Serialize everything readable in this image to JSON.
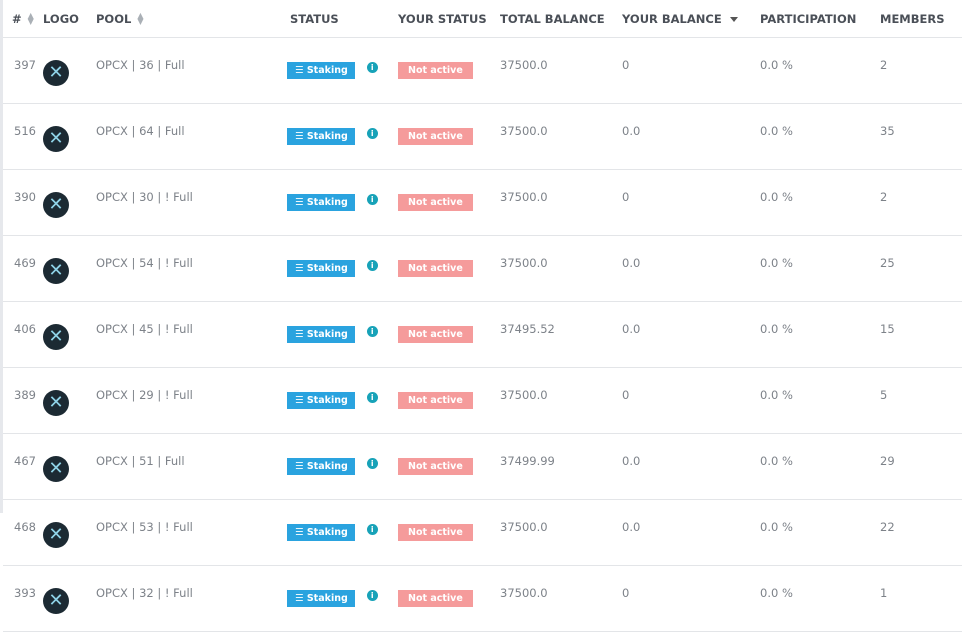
{
  "headers": {
    "num": "#",
    "logo": "LOGO",
    "pool": "POOL",
    "status": "STATUS",
    "your_status": "YOUR STATUS",
    "total_balance": "TOTAL BALANCE",
    "your_balance": "YOUR BALANCE",
    "participation": "PARTICIPATION",
    "members": "MEMBERS"
  },
  "colors": {
    "staking": "#2aa3df",
    "not_active": "#f59b9b",
    "info": "#17a2b8"
  },
  "rows": [
    {
      "num": "397",
      "pool": "OPCX | 36 | Full",
      "status": "Staking",
      "your_status": "Not active",
      "total": "37500.0",
      "yours": "0",
      "part": "0.0 %",
      "members": "2"
    },
    {
      "num": "516",
      "pool": "OPCX | 64 | Full",
      "status": "Staking",
      "your_status": "Not active",
      "total": "37500.0",
      "yours": "0.0",
      "part": "0.0 %",
      "members": "35"
    },
    {
      "num": "390",
      "pool": "OPCX | 30 | ! Full",
      "status": "Staking",
      "your_status": "Not active",
      "total": "37500.0",
      "yours": "0",
      "part": "0.0 %",
      "members": "2"
    },
    {
      "num": "469",
      "pool": "OPCX | 54 | ! Full",
      "status": "Staking",
      "your_status": "Not active",
      "total": "37500.0",
      "yours": "0.0",
      "part": "0.0 %",
      "members": "25"
    },
    {
      "num": "406",
      "pool": "OPCX | 45 | ! Full",
      "status": "Staking",
      "your_status": "Not active",
      "total": "37495.52",
      "yours": "0.0",
      "part": "0.0 %",
      "members": "15"
    },
    {
      "num": "389",
      "pool": "OPCX | 29 | ! Full",
      "status": "Staking",
      "your_status": "Not active",
      "total": "37500.0",
      "yours": "0",
      "part": "0.0 %",
      "members": "5"
    },
    {
      "num": "467",
      "pool": "OPCX | 51 | Full",
      "status": "Staking",
      "your_status": "Not active",
      "total": "37499.99",
      "yours": "0.0",
      "part": "0.0 %",
      "members": "29"
    },
    {
      "num": "468",
      "pool": "OPCX | 53 | ! Full",
      "status": "Staking",
      "your_status": "Not active",
      "total": "37500.0",
      "yours": "0.0",
      "part": "0.0 %",
      "members": "22"
    },
    {
      "num": "393",
      "pool": "OPCX | 32 | ! Full",
      "status": "Staking",
      "your_status": "Not active",
      "total": "37500.0",
      "yours": "0",
      "part": "0.0 %",
      "members": "1"
    }
  ]
}
